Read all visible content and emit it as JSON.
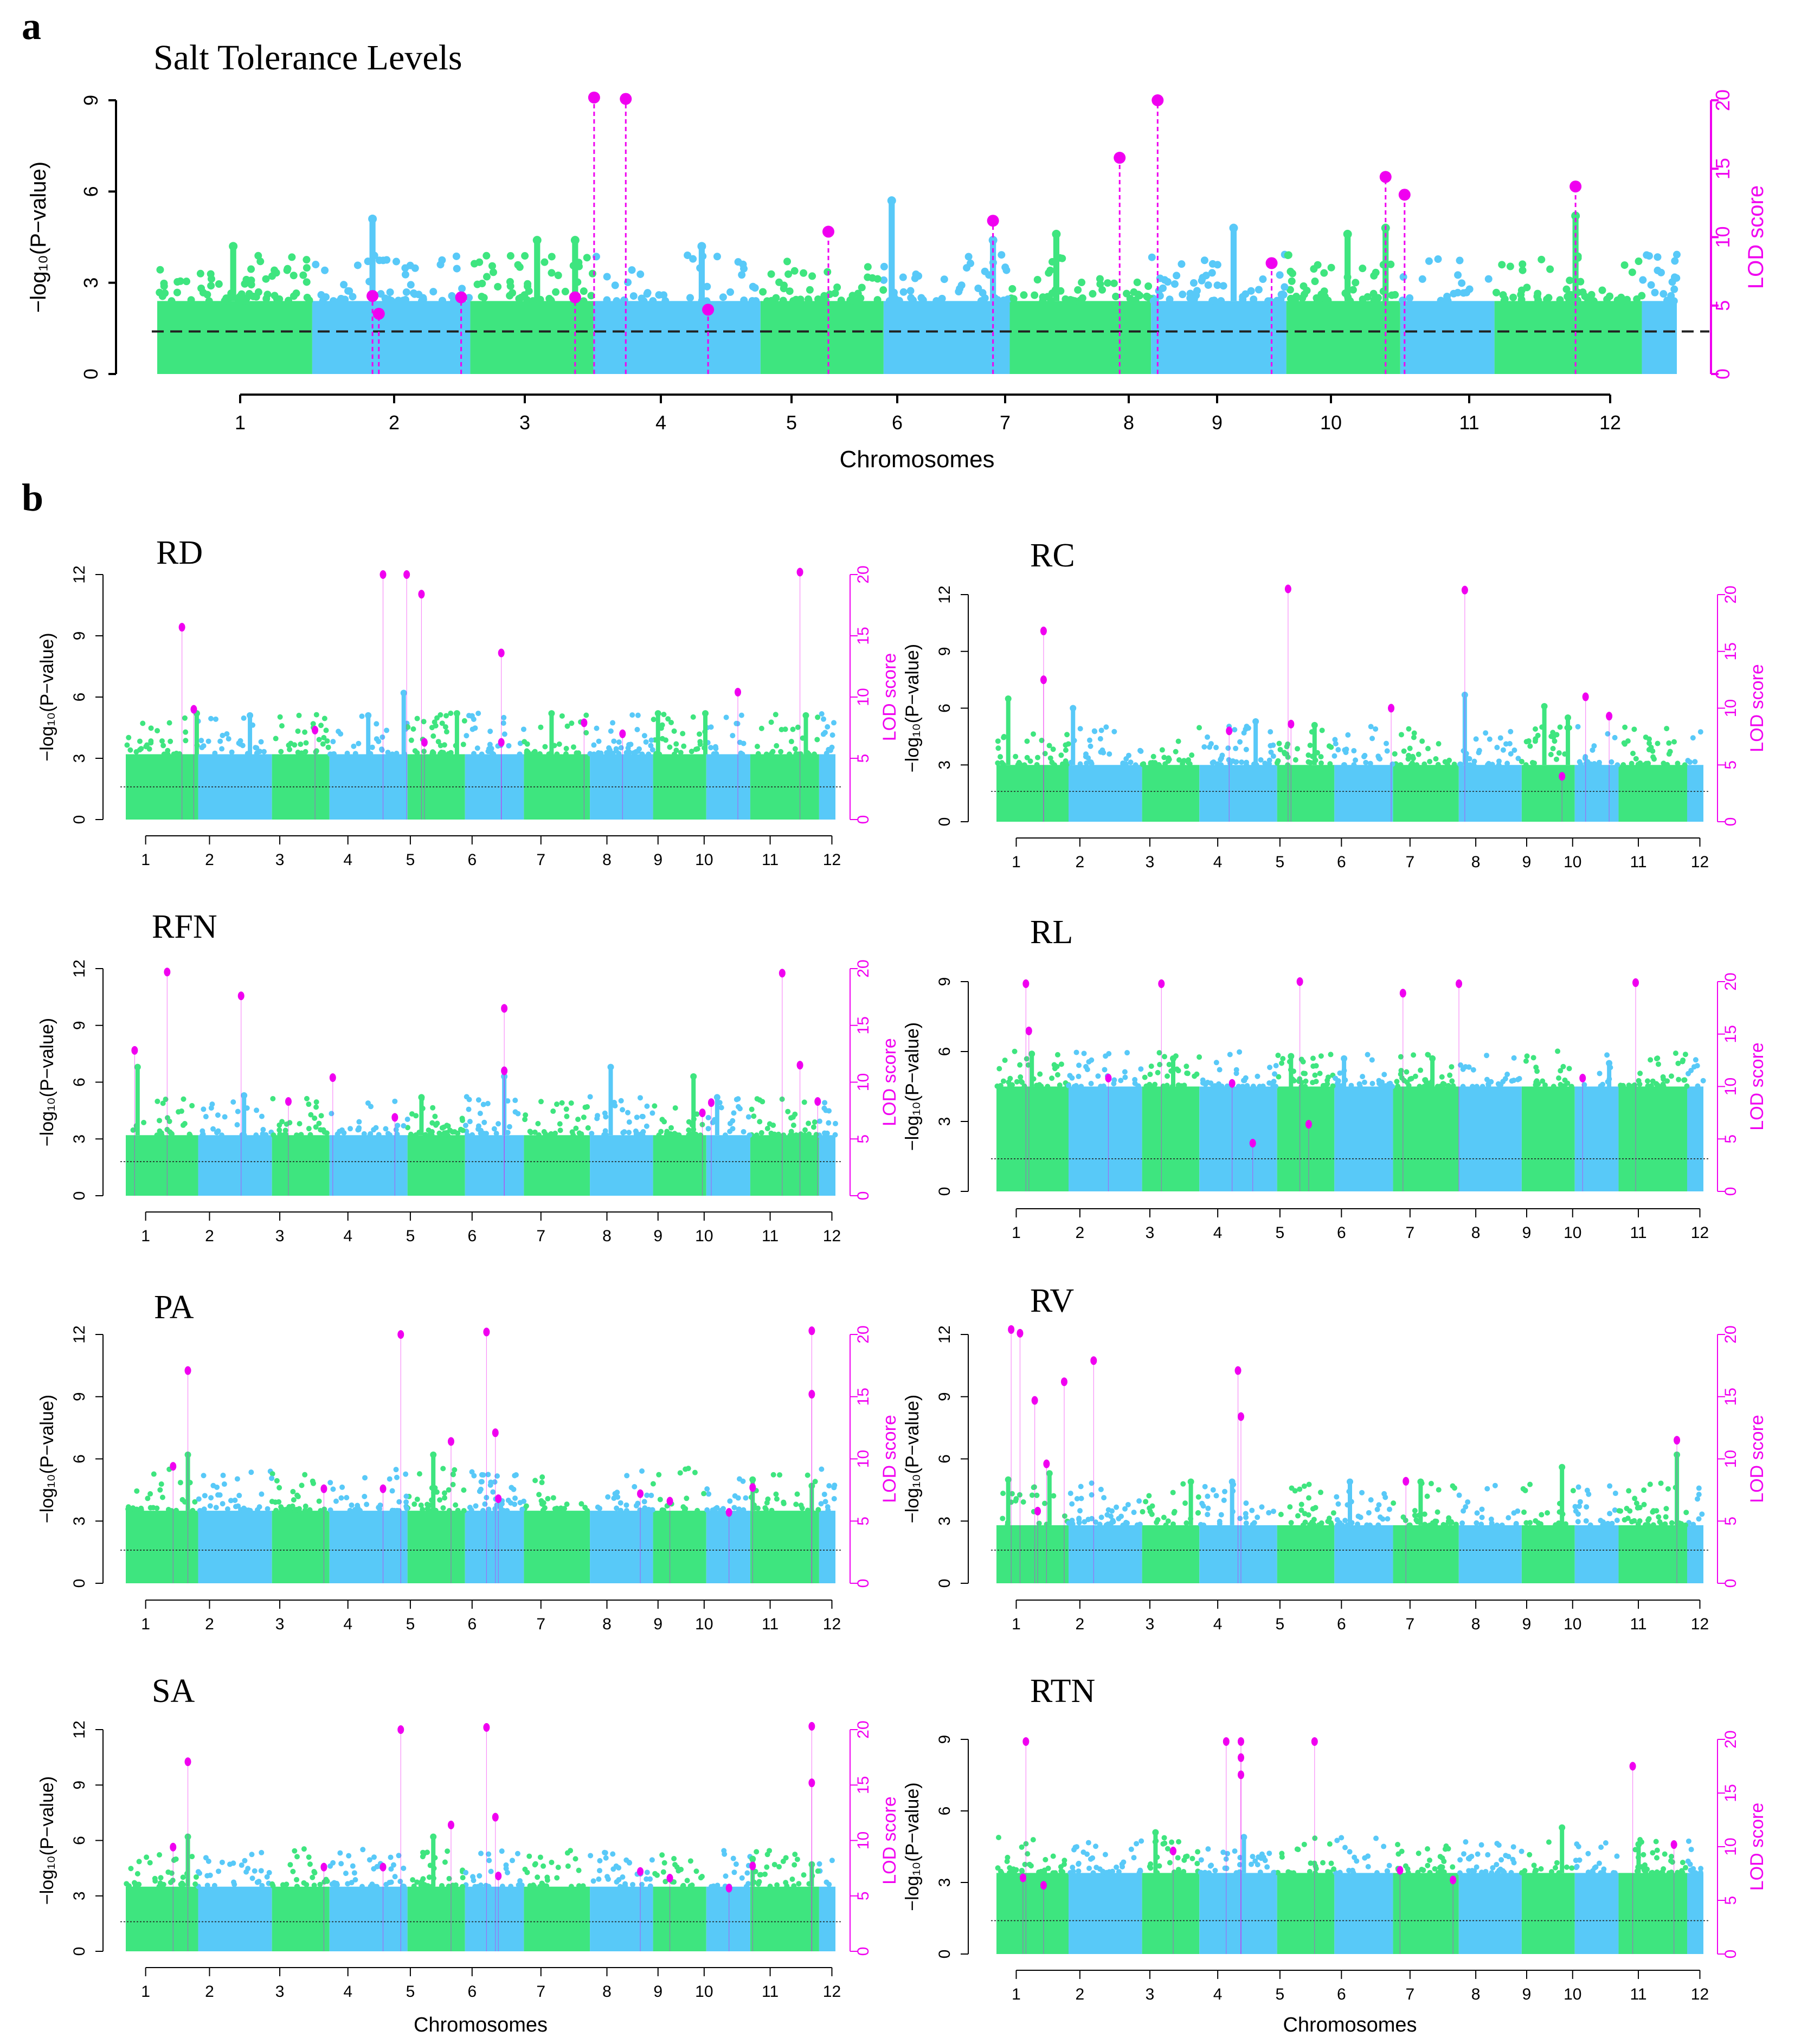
{
  "figure": {
    "panel_a_letter": "a",
    "panel_b_letter": "b",
    "colors": {
      "green": "#3EE57F",
      "blue": "#58C9F8",
      "magenta": "#F000F0",
      "threshold": "#222222"
    }
  },
  "chart_data": [
    {
      "id": "salt",
      "type": "scatter",
      "title": "Salt Tolerance Levels",
      "xlabel": "Chromosomes",
      "ylabel_left": "−log₁₀(P−value)",
      "ylabel_right": "LOD score",
      "ylim_left": [
        0,
        9
      ],
      "yticks_left": [
        "0",
        "3",
        "6",
        "9"
      ],
      "ylim_right": [
        0,
        20
      ],
      "yticks_right": [
        "0",
        "5",
        "10",
        "15",
        "20"
      ],
      "x_tick_labels": [
        "1",
        "2",
        "3",
        "4",
        "5",
        "6",
        "7",
        "8",
        "9",
        "10",
        "11",
        "12"
      ],
      "x_tick_positions": [
        1.5,
        2.6,
        3.5,
        4.5,
        5.4,
        6.2,
        7.0,
        8.0,
        8.6,
        9.6,
        10.6,
        11.7
      ],
      "threshold": 1.4,
      "base_level": 2.4,
      "qtl": [
        {
          "x": 2.3,
          "lod": 5.7
        },
        {
          "x": 2.35,
          "lod": 4.4
        },
        {
          "x": 3.0,
          "lod": 5.6
        },
        {
          "x": 3.9,
          "lod": 5.6
        },
        {
          "x": 4.05,
          "lod": 20.2
        },
        {
          "x": 4.3,
          "lod": 20.1
        },
        {
          "x": 4.95,
          "lod": 4.7
        },
        {
          "x": 5.9,
          "lod": 10.4
        },
        {
          "x": 7.2,
          "lod": 11.2
        },
        {
          "x": 8.2,
          "lod": 15.8
        },
        {
          "x": 8.5,
          "lod": 20.0
        },
        {
          "x": 9.4,
          "lod": 8.1
        },
        {
          "x": 10.3,
          "lod": 14.4
        },
        {
          "x": 10.45,
          "lod": 13.1
        },
        {
          "x": 11.8,
          "lod": 13.7
        }
      ],
      "peaks": [
        {
          "x": 1.2,
          "y": 4.2
        },
        {
          "x": 2.3,
          "y": 5.1
        },
        {
          "x": 3.6,
          "y": 4.4
        },
        {
          "x": 3.9,
          "y": 4.4
        },
        {
          "x": 4.9,
          "y": 4.2
        },
        {
          "x": 6.4,
          "y": 5.7
        },
        {
          "x": 7.2,
          "y": 4.4
        },
        {
          "x": 7.7,
          "y": 4.6
        },
        {
          "x": 9.1,
          "y": 4.8
        },
        {
          "x": 10.0,
          "y": 4.6
        },
        {
          "x": 10.3,
          "y": 4.8
        },
        {
          "x": 11.8,
          "y": 5.2
        }
      ]
    },
    {
      "id": "rd",
      "type": "scatter",
      "title": "RD",
      "xlabel": "",
      "ylabel_left": "−log₁₀(P−value)",
      "ylabel_right": "LOD score",
      "ylim_left": [
        0,
        12
      ],
      "yticks_left": [
        "0",
        "3",
        "6",
        "9",
        "12"
      ],
      "ylim_right": [
        0,
        20
      ],
      "yticks_right": [
        "0",
        "5",
        "10",
        "15",
        "20"
      ],
      "x_tick_labels": [
        "1",
        "2",
        "3",
        "4",
        "5",
        "6",
        "7",
        "8",
        "9",
        "10",
        "11",
        "12"
      ],
      "threshold": 1.6,
      "base_level": 3.2,
      "qtl": [
        {
          "x": 1.55,
          "lod": 15.7
        },
        {
          "x": 1.75,
          "lod": 9.0
        },
        {
          "x": 3.8,
          "lod": 7.3
        },
        {
          "x": 4.95,
          "lod": 20.0
        },
        {
          "x": 5.35,
          "lod": 20.0
        },
        {
          "x": 5.6,
          "lod": 18.4
        },
        {
          "x": 5.65,
          "lod": 6.3
        },
        {
          "x": 6.95,
          "lod": 13.6
        },
        {
          "x": 6.95,
          "lod": 6.3
        },
        {
          "x": 8.35,
          "lod": 7.9
        },
        {
          "x": 9.0,
          "lod": 7.0
        },
        {
          "x": 10.95,
          "lod": 10.4
        },
        {
          "x": 12.0,
          "lod": 20.2
        }
      ],
      "peaks": [
        {
          "x": 1.8,
          "y": 5.2
        },
        {
          "x": 2.7,
          "y": 5.1
        },
        {
          "x": 4.7,
          "y": 5.1
        },
        {
          "x": 5.3,
          "y": 6.2
        },
        {
          "x": 6.2,
          "y": 5.2
        },
        {
          "x": 7.8,
          "y": 5.2
        },
        {
          "x": 9.6,
          "y": 5.2
        },
        {
          "x": 10.4,
          "y": 5.2
        },
        {
          "x": 12.1,
          "y": 5.1
        }
      ]
    },
    {
      "id": "rc",
      "type": "scatter",
      "title": "RC",
      "xlabel": "",
      "ylabel_left": "−log₁₀(P−value)",
      "ylabel_right": "LOD score",
      "ylim_left": [
        0,
        12
      ],
      "yticks_left": [
        "0",
        "3",
        "6",
        "9",
        "12"
      ],
      "ylim_right": [
        0,
        20
      ],
      "yticks_right": [
        "0",
        "5",
        "10",
        "15",
        "20"
      ],
      "x_tick_labels": [
        "1",
        "2",
        "3",
        "4",
        "5",
        "6",
        "7",
        "8",
        "9",
        "10",
        "11",
        "12"
      ],
      "threshold": 1.6,
      "base_level": 3.0,
      "qtl": [
        {
          "x": 1.4,
          "lod": 16.8
        },
        {
          "x": 1.4,
          "lod": 12.5
        },
        {
          "x": 4.55,
          "lod": 8.0
        },
        {
          "x": 5.55,
          "lod": 20.5
        },
        {
          "x": 5.6,
          "lod": 8.6
        },
        {
          "x": 7.3,
          "lod": 10.0
        },
        {
          "x": 8.55,
          "lod": 20.4
        },
        {
          "x": 10.2,
          "lod": 4.0
        },
        {
          "x": 10.6,
          "lod": 11.0
        },
        {
          "x": 11.0,
          "lod": 9.3
        }
      ],
      "peaks": [
        {
          "x": 0.8,
          "y": 6.5
        },
        {
          "x": 1.9,
          "y": 6.0
        },
        {
          "x": 5.0,
          "y": 5.3
        },
        {
          "x": 6.0,
          "y": 5.1
        },
        {
          "x": 8.55,
          "y": 6.7
        },
        {
          "x": 9.9,
          "y": 6.1
        },
        {
          "x": 10.3,
          "y": 5.5
        }
      ]
    },
    {
      "id": "rfn",
      "type": "scatter",
      "title": "RFN",
      "xlabel": "",
      "ylabel_left": "−log₁₀(P−value)",
      "ylabel_right": "LOD score",
      "ylim_left": [
        0,
        12
      ],
      "yticks_left": [
        "0",
        "3",
        "6",
        "9",
        "12"
      ],
      "ylim_right": [
        0,
        20
      ],
      "yticks_right": [
        "0",
        "5",
        "10",
        "15",
        "20"
      ],
      "x_tick_labels": [
        "1",
        "2",
        "3",
        "4",
        "5",
        "6",
        "7",
        "8",
        "9",
        "10",
        "11",
        "12"
      ],
      "threshold": 1.8,
      "base_level": 3.2,
      "qtl": [
        {
          "x": 0.75,
          "lod": 12.8
        },
        {
          "x": 1.3,
          "lod": 19.7
        },
        {
          "x": 2.55,
          "lod": 17.6
        },
        {
          "x": 3.35,
          "lod": 8.3
        },
        {
          "x": 4.1,
          "lod": 10.4
        },
        {
          "x": 5.15,
          "lod": 6.9
        },
        {
          "x": 7.0,
          "lod": 16.5
        },
        {
          "x": 7.0,
          "lod": 11.0
        },
        {
          "x": 10.35,
          "lod": 7.3
        },
        {
          "x": 10.5,
          "lod": 8.2
        },
        {
          "x": 11.7,
          "lod": 19.6
        },
        {
          "x": 12.0,
          "lod": 11.5
        },
        {
          "x": 12.3,
          "lod": 8.3
        }
      ],
      "peaks": [
        {
          "x": 0.8,
          "y": 6.8
        },
        {
          "x": 2.6,
          "y": 5.3
        },
        {
          "x": 5.6,
          "y": 5.2
        },
        {
          "x": 7.0,
          "y": 6.3
        },
        {
          "x": 8.8,
          "y": 6.8
        },
        {
          "x": 10.2,
          "y": 6.3
        },
        {
          "x": 10.6,
          "y": 5.2
        }
      ]
    },
    {
      "id": "rl",
      "type": "scatter",
      "title": "RL",
      "xlabel": "",
      "ylabel_left": "−log₁₀(P−value)",
      "ylabel_right": "LOD score",
      "ylim_left": [
        0,
        9
      ],
      "yticks_left": [
        "0",
        "3",
        "6",
        "9"
      ],
      "ylim_right": [
        0,
        20
      ],
      "yticks_right": [
        "0",
        "5",
        "10",
        "15",
        "20"
      ],
      "x_tick_labels": [
        "1",
        "2",
        "3",
        "4",
        "5",
        "6",
        "7",
        "8",
        "9",
        "10",
        "11",
        "12"
      ],
      "threshold": 1.4,
      "base_level": 4.5,
      "qtl": [
        {
          "x": 1.1,
          "lod": 19.8
        },
        {
          "x": 1.15,
          "lod": 15.3
        },
        {
          "x": 2.5,
          "lod": 10.8
        },
        {
          "x": 3.4,
          "lod": 19.8
        },
        {
          "x": 4.6,
          "lod": 10.3
        },
        {
          "x": 4.95,
          "lod": 4.6
        },
        {
          "x": 5.75,
          "lod": 20.0
        },
        {
          "x": 5.9,
          "lod": 6.4
        },
        {
          "x": 7.5,
          "lod": 18.9
        },
        {
          "x": 8.45,
          "lod": 19.8
        },
        {
          "x": 10.55,
          "lod": 10.8
        },
        {
          "x": 11.45,
          "lod": 19.9
        }
      ],
      "peaks": [
        {
          "x": 1.2,
          "y": 5.9
        },
        {
          "x": 3.6,
          "y": 5.7
        },
        {
          "x": 5.6,
          "y": 5.8
        },
        {
          "x": 6.5,
          "y": 5.7
        },
        {
          "x": 8.0,
          "y": 5.7
        },
        {
          "x": 11.0,
          "y": 5.5
        }
      ]
    },
    {
      "id": "pa",
      "type": "scatter",
      "title": "PA",
      "xlabel": "",
      "ylabel_left": "−log₁₀(P−value)",
      "ylabel_right": "LOD score",
      "ylim_left": [
        0,
        12
      ],
      "yticks_left": [
        "0",
        "3",
        "6",
        "9",
        "12"
      ],
      "ylim_right": [
        0,
        20
      ],
      "yticks_right": [
        "0",
        "5",
        "10",
        "15",
        "20"
      ],
      "x_tick_labels": [
        "1",
        "2",
        "3",
        "4",
        "5",
        "6",
        "7",
        "8",
        "9",
        "10",
        "11",
        "12"
      ],
      "threshold": 1.6,
      "base_level": 3.5,
      "qtl": [
        {
          "x": 1.4,
          "lod": 9.4
        },
        {
          "x": 1.65,
          "lod": 17.1
        },
        {
          "x": 3.95,
          "lod": 7.6
        },
        {
          "x": 4.95,
          "lod": 7.6
        },
        {
          "x": 5.25,
          "lod": 20.0
        },
        {
          "x": 6.1,
          "lod": 11.4
        },
        {
          "x": 6.7,
          "lod": 20.2
        },
        {
          "x": 6.85,
          "lod": 12.1
        },
        {
          "x": 6.9,
          "lod": 6.8
        },
        {
          "x": 9.3,
          "lod": 7.2
        },
        {
          "x": 9.8,
          "lod": 6.6
        },
        {
          "x": 10.8,
          "lod": 5.7
        },
        {
          "x": 11.2,
          "lod": 7.7
        },
        {
          "x": 12.2,
          "lod": 20.3
        },
        {
          "x": 12.2,
          "lod": 15.2
        }
      ],
      "peaks": [
        {
          "x": 1.65,
          "y": 6.2
        },
        {
          "x": 5.8,
          "y": 6.2
        },
        {
          "x": 11.2,
          "y": 5.0
        },
        {
          "x": 12.2,
          "y": 4.7
        }
      ]
    },
    {
      "id": "rv",
      "type": "scatter",
      "title": "RV",
      "xlabel": "",
      "ylabel_left": "−log₁₀(P−value)",
      "ylabel_right": "LOD score",
      "ylim_left": [
        0,
        12
      ],
      "yticks_left": [
        "0",
        "3",
        "6",
        "9",
        "12"
      ],
      "ylim_right": [
        0,
        20
      ],
      "yticks_right": [
        "0",
        "5",
        "10",
        "15",
        "20"
      ],
      "x_tick_labels": [
        "1",
        "2",
        "3",
        "4",
        "5",
        "6",
        "7",
        "8",
        "9",
        "10",
        "11",
        "12"
      ],
      "threshold": 1.6,
      "base_level": 2.8,
      "qtl": [
        {
          "x": 0.85,
          "lod": 20.4
        },
        {
          "x": 1.0,
          "lod": 20.1
        },
        {
          "x": 1.25,
          "lod": 14.7
        },
        {
          "x": 1.3,
          "lod": 5.8
        },
        {
          "x": 1.45,
          "lod": 9.6
        },
        {
          "x": 1.75,
          "lod": 16.2
        },
        {
          "x": 2.25,
          "lod": 17.9
        },
        {
          "x": 4.7,
          "lod": 17.1
        },
        {
          "x": 4.75,
          "lod": 13.4
        },
        {
          "x": 7.55,
          "lod": 8.2
        },
        {
          "x": 12.15,
          "lod": 11.5
        }
      ],
      "peaks": [
        {
          "x": 0.8,
          "y": 5.0
        },
        {
          "x": 1.5,
          "y": 5.3
        },
        {
          "x": 3.9,
          "y": 4.9
        },
        {
          "x": 4.6,
          "y": 4.9
        },
        {
          "x": 6.6,
          "y": 4.9
        },
        {
          "x": 7.8,
          "y": 4.9
        },
        {
          "x": 10.2,
          "y": 5.6
        },
        {
          "x": 12.15,
          "y": 6.2
        }
      ]
    },
    {
      "id": "sa",
      "type": "scatter",
      "title": "SA",
      "xlabel": "Chromosomes",
      "ylabel_left": "−log₁₀(P−value)",
      "ylabel_right": "LOD score",
      "ylim_left": [
        0,
        12
      ],
      "yticks_left": [
        "0",
        "3",
        "6",
        "9",
        "12"
      ],
      "ylim_right": [
        0,
        20
      ],
      "yticks_right": [
        "0",
        "5",
        "10",
        "15",
        "20"
      ],
      "x_tick_labels": [
        "1",
        "2",
        "3",
        "4",
        "5",
        "6",
        "7",
        "8",
        "9",
        "10",
        "11",
        "12"
      ],
      "threshold": 1.6,
      "base_level": 3.5,
      "qtl": [
        {
          "x": 1.4,
          "lod": 9.4
        },
        {
          "x": 1.65,
          "lod": 17.1
        },
        {
          "x": 3.95,
          "lod": 7.6
        },
        {
          "x": 4.95,
          "lod": 7.6
        },
        {
          "x": 5.25,
          "lod": 20.0
        },
        {
          "x": 6.1,
          "lod": 11.4
        },
        {
          "x": 6.7,
          "lod": 20.2
        },
        {
          "x": 6.85,
          "lod": 12.1
        },
        {
          "x": 6.9,
          "lod": 6.8
        },
        {
          "x": 9.3,
          "lod": 7.2
        },
        {
          "x": 9.8,
          "lod": 6.6
        },
        {
          "x": 10.8,
          "lod": 5.7
        },
        {
          "x": 11.2,
          "lod": 7.7
        },
        {
          "x": 12.2,
          "lod": 20.3
        },
        {
          "x": 12.2,
          "lod": 15.2
        }
      ],
      "peaks": [
        {
          "x": 1.65,
          "y": 6.2
        },
        {
          "x": 5.8,
          "y": 6.2
        },
        {
          "x": 11.2,
          "y": 5.0
        },
        {
          "x": 12.2,
          "y": 4.7
        }
      ]
    },
    {
      "id": "rtn",
      "type": "scatter",
      "title": "RTN",
      "xlabel": "Chromosomes",
      "ylabel_left": "−log₁₀(P−value)",
      "ylabel_right": "LOD score",
      "ylim_left": [
        0,
        9
      ],
      "yticks_left": [
        "0",
        "3",
        "6",
        "9"
      ],
      "ylim_right": [
        0,
        20
      ],
      "yticks_right": [
        "0",
        "5",
        "10",
        "15",
        "20"
      ],
      "x_tick_labels": [
        "1",
        "2",
        "3",
        "4",
        "5",
        "6",
        "7",
        "8",
        "9",
        "10",
        "11",
        "12"
      ],
      "threshold": 1.4,
      "base_level": 3.4,
      "qtl": [
        {
          "x": 1.1,
          "lod": 19.8
        },
        {
          "x": 1.05,
          "lod": 7.1
        },
        {
          "x": 1.4,
          "lod": 6.4
        },
        {
          "x": 3.6,
          "lod": 9.6
        },
        {
          "x": 4.5,
          "lod": 19.8
        },
        {
          "x": 4.75,
          "lod": 19.8
        },
        {
          "x": 4.75,
          "lod": 18.3
        },
        {
          "x": 4.75,
          "lod": 16.7
        },
        {
          "x": 6.0,
          "lod": 19.8
        },
        {
          "x": 7.45,
          "lod": 7.8
        },
        {
          "x": 8.35,
          "lod": 6.9
        },
        {
          "x": 11.4,
          "lod": 17.5
        },
        {
          "x": 12.1,
          "lod": 10.2
        }
      ],
      "peaks": [
        {
          "x": 3.3,
          "y": 5.1
        },
        {
          "x": 4.8,
          "y": 4.9
        },
        {
          "x": 10.2,
          "y": 5.3
        },
        {
          "x": 11.5,
          "y": 4.6
        }
      ]
    }
  ]
}
